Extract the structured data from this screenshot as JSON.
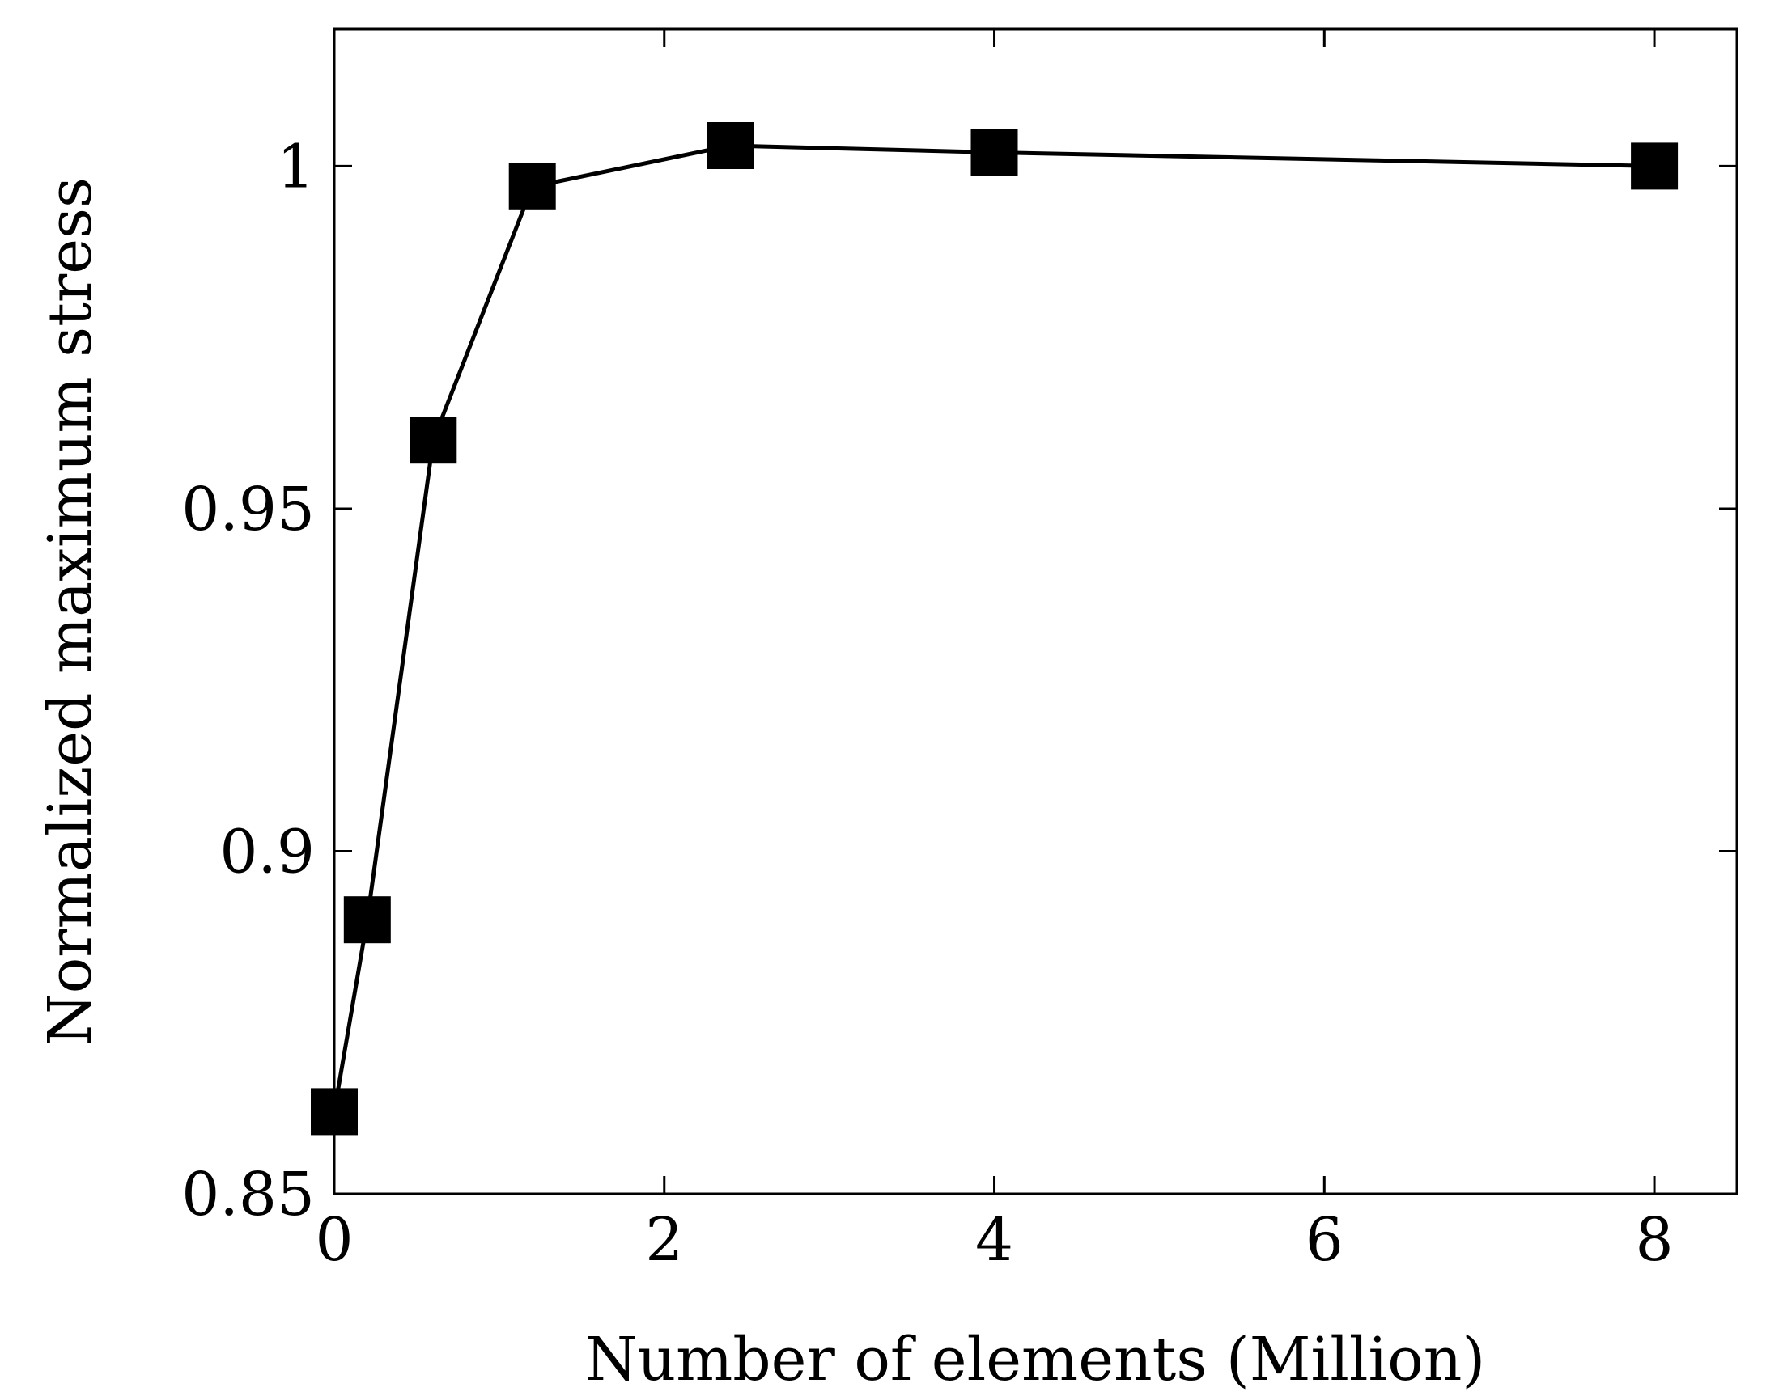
{
  "chart_data": {
    "type": "line",
    "title": "",
    "xlabel": "Number of elements (Million)",
    "ylabel": "Normalized maximum stress",
    "xlim": [
      0,
      8.5
    ],
    "ylim": [
      0.85,
      1.02
    ],
    "x_ticks": [
      0,
      2,
      4,
      6,
      8
    ],
    "x_tick_labels": [
      "0",
      "2",
      "4",
      "6",
      "8"
    ],
    "y_ticks": [
      0.85,
      0.9,
      0.95,
      1.0
    ],
    "y_tick_labels": [
      "0.85",
      "0.9",
      "0.95",
      "1"
    ],
    "grid": false,
    "legend": "none",
    "series": [
      {
        "marker": "square",
        "color": "#000000",
        "x": [
          0.0,
          0.2,
          0.6,
          1.2,
          2.4,
          4.0,
          8.0
        ],
        "y": [
          0.862,
          0.89,
          0.96,
          0.997,
          1.003,
          1.002,
          1.0
        ]
      }
    ]
  }
}
